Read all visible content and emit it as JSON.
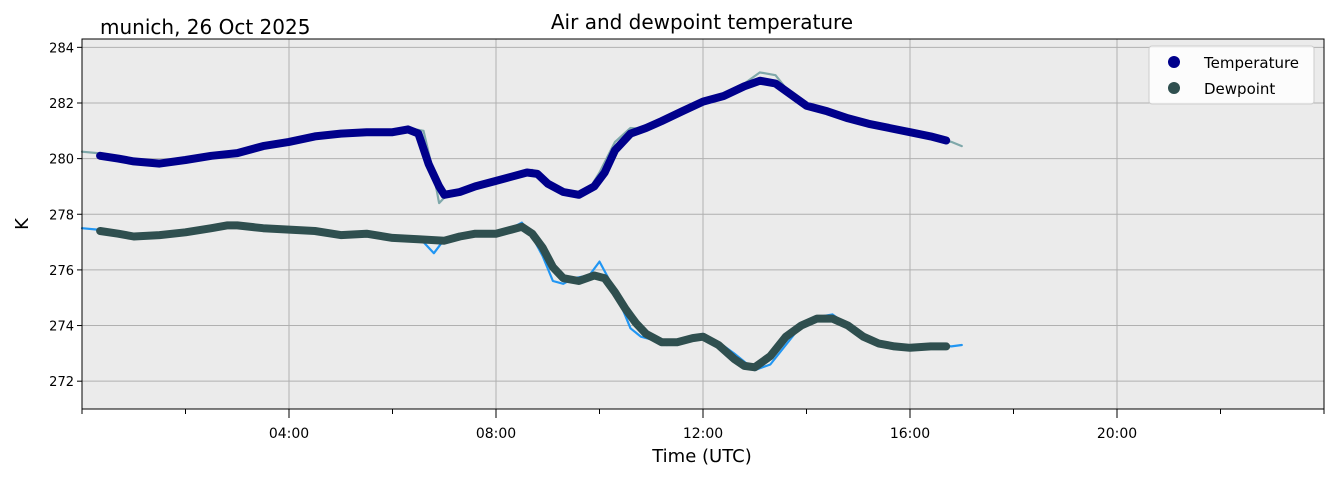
{
  "chart_data": {
    "type": "line",
    "title": "Air and dewpoint temperature",
    "subtitle": "munich, 26 Oct 2025",
    "xlabel": "Time (UTC)",
    "ylabel": "K",
    "xlim": [
      0,
      24
    ],
    "ylim": [
      271.0,
      284.3
    ],
    "x_ticks": [
      4,
      8,
      12,
      16,
      20
    ],
    "x_tick_labels": [
      "04:00",
      "08:00",
      "12:00",
      "16:00",
      "20:00"
    ],
    "y_ticks": [
      272,
      274,
      276,
      278,
      280,
      282,
      284
    ],
    "y_tick_labels": [
      "272",
      "274",
      "276",
      "278",
      "280",
      "282",
      "284"
    ],
    "grid": true,
    "legend_position": "top-right",
    "colors": {
      "plot_bg": "#EBEBEB",
      "temperature_raw": "#7FA8AA",
      "temperature_smooth": "#00008B",
      "dewpoint_raw": "#2196F3",
      "dewpoint_smooth": "#2F4F4F"
    },
    "series": [
      {
        "name": "Temperature raw",
        "role": "raw",
        "color": "#7FA8AA",
        "x": [
          0.0,
          0.3,
          0.5,
          1.0,
          1.5,
          2.0,
          2.5,
          3.0,
          3.5,
          4.0,
          4.5,
          5.0,
          5.5,
          6.0,
          6.3,
          6.6,
          6.8,
          6.9,
          7.0,
          7.3,
          7.6,
          8.0,
          8.4,
          8.7,
          9.0,
          9.3,
          9.5,
          9.8,
          10.0,
          10.3,
          10.6,
          10.9,
          11.2,
          11.6,
          12.0,
          12.4,
          12.8,
          13.1,
          13.4,
          13.7,
          14.0,
          14.4,
          14.8,
          15.2,
          15.6,
          16.0,
          16.4,
          16.8,
          17.0
        ],
        "y": [
          280.25,
          280.2,
          280.1,
          279.95,
          279.85,
          279.95,
          280.1,
          280.2,
          280.4,
          280.6,
          280.8,
          280.9,
          280.95,
          280.95,
          281.1,
          281.0,
          279.4,
          278.4,
          278.6,
          278.9,
          279.0,
          279.2,
          279.45,
          279.6,
          279.0,
          278.75,
          278.7,
          278.9,
          279.5,
          280.6,
          281.1,
          281.05,
          281.4,
          281.6,
          282.05,
          282.2,
          282.7,
          283.1,
          283.0,
          282.3,
          281.9,
          281.7,
          281.45,
          281.25,
          281.1,
          280.95,
          280.8,
          280.6,
          280.45
        ]
      },
      {
        "name": "Temperature",
        "role": "smoothed",
        "color": "#00008B",
        "x": [
          0.35,
          0.7,
          1.0,
          1.5,
          2.0,
          2.5,
          3.0,
          3.5,
          4.0,
          4.5,
          5.0,
          5.5,
          6.0,
          6.3,
          6.5,
          6.7,
          6.9,
          7.0,
          7.3,
          7.6,
          8.0,
          8.3,
          8.6,
          8.8,
          9.0,
          9.3,
          9.6,
          9.9,
          10.1,
          10.3,
          10.6,
          10.9,
          11.2,
          11.6,
          12.0,
          12.4,
          12.8,
          13.1,
          13.4,
          13.7,
          14.0,
          14.4,
          14.8,
          15.2,
          15.6,
          16.0,
          16.4,
          16.7
        ],
        "y": [
          280.1,
          280.0,
          279.9,
          279.82,
          279.95,
          280.1,
          280.2,
          280.45,
          280.6,
          280.8,
          280.9,
          280.95,
          280.95,
          281.05,
          280.9,
          279.8,
          279.0,
          278.7,
          278.8,
          279.0,
          279.2,
          279.35,
          279.5,
          279.45,
          279.1,
          278.8,
          278.7,
          279.0,
          279.5,
          280.3,
          280.9,
          281.1,
          281.35,
          281.7,
          282.05,
          282.25,
          282.6,
          282.8,
          282.7,
          282.3,
          281.9,
          281.7,
          281.45,
          281.25,
          281.1,
          280.95,
          280.8,
          280.65
        ]
      },
      {
        "name": "Dewpoint raw",
        "role": "raw",
        "color": "#2196F3",
        "x": [
          0.0,
          0.3,
          0.6,
          1.0,
          1.5,
          2.0,
          2.5,
          3.0,
          3.5,
          4.0,
          4.5,
          5.0,
          5.5,
          6.0,
          6.3,
          6.6,
          6.8,
          7.0,
          7.3,
          7.6,
          8.0,
          8.3,
          8.5,
          8.7,
          8.9,
          9.1,
          9.3,
          9.5,
          9.8,
          10.0,
          10.2,
          10.4,
          10.6,
          10.8,
          11.0,
          11.3,
          11.6,
          12.0,
          12.3,
          12.6,
          12.8,
          13.0,
          13.3,
          13.6,
          13.9,
          14.2,
          14.5,
          14.8,
          15.1,
          15.4,
          15.7,
          16.0,
          16.4,
          16.8,
          17.0
        ],
        "y": [
          277.5,
          277.45,
          277.3,
          277.2,
          277.25,
          277.35,
          277.45,
          277.65,
          277.5,
          277.5,
          277.4,
          277.25,
          277.35,
          277.2,
          277.1,
          277.0,
          276.6,
          277.1,
          277.2,
          277.3,
          277.3,
          277.5,
          277.7,
          277.2,
          276.5,
          275.6,
          275.5,
          275.7,
          275.8,
          276.3,
          275.6,
          274.8,
          273.9,
          273.6,
          273.5,
          273.3,
          273.4,
          273.7,
          273.4,
          273.0,
          272.7,
          272.4,
          272.6,
          273.3,
          274.0,
          274.3,
          274.4,
          274.0,
          273.6,
          273.4,
          273.2,
          273.2,
          273.3,
          273.25,
          273.3
        ]
      },
      {
        "name": "Dewpoint",
        "role": "smoothed",
        "color": "#2F4F4F",
        "x": [
          0.35,
          0.7,
          1.0,
          1.5,
          2.0,
          2.5,
          2.8,
          3.0,
          3.5,
          4.0,
          4.5,
          5.0,
          5.5,
          6.0,
          6.5,
          7.0,
          7.3,
          7.6,
          8.0,
          8.3,
          8.5,
          8.7,
          8.9,
          9.1,
          9.3,
          9.6,
          9.9,
          10.1,
          10.3,
          10.5,
          10.7,
          10.9,
          11.2,
          11.5,
          11.8,
          12.0,
          12.3,
          12.6,
          12.8,
          13.0,
          13.3,
          13.6,
          13.9,
          14.2,
          14.5,
          14.8,
          15.1,
          15.4,
          15.7,
          16.0,
          16.4,
          16.7
        ],
        "y": [
          277.4,
          277.3,
          277.2,
          277.25,
          277.35,
          277.5,
          277.6,
          277.6,
          277.5,
          277.45,
          277.4,
          277.25,
          277.3,
          277.15,
          277.1,
          277.05,
          277.2,
          277.3,
          277.3,
          277.45,
          277.55,
          277.3,
          276.8,
          276.1,
          275.7,
          275.6,
          275.8,
          275.7,
          275.2,
          274.6,
          274.1,
          273.7,
          273.4,
          273.4,
          273.55,
          273.6,
          273.3,
          272.8,
          272.55,
          272.5,
          272.9,
          273.6,
          274.0,
          274.25,
          274.25,
          274.0,
          273.6,
          273.35,
          273.25,
          273.2,
          273.25,
          273.25
        ]
      }
    ],
    "legend": [
      {
        "label": "Temperature",
        "color": "#00008B"
      },
      {
        "label": "Dewpoint",
        "color": "#2F4F4F"
      }
    ]
  }
}
